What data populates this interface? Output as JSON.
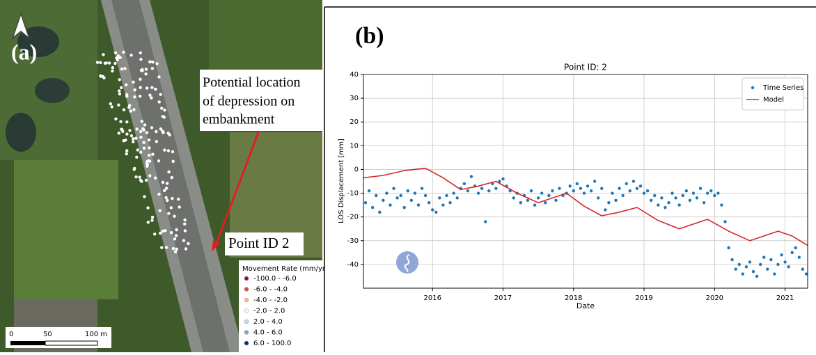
{
  "map": {
    "panel_label": "(a)",
    "annotation": [
      "Potential location",
      "of depression on",
      "embankment"
    ],
    "point_label": "Point ID 2",
    "legend": {
      "title": "Movement Rate (mm/yr)",
      "items": [
        {
          "label": "-100.0 - -6.0",
          "color": "#a50f15"
        },
        {
          "label": "-6.0 - -4.0",
          "color": "#e34a33"
        },
        {
          "label": "-4.0 - -2.0",
          "color": "#fdbb84"
        },
        {
          "label": "-2.0 - 2.0",
          "color": "#f7f7f7"
        },
        {
          "label": "2.0 - 4.0",
          "color": "#bdd7e7"
        },
        {
          "label": "4.0 - 6.0",
          "color": "#6baed6"
        },
        {
          "label": "6.0 - 100.0",
          "color": "#08306b"
        }
      ]
    },
    "scale": [
      "0",
      "50",
      "100 m"
    ]
  },
  "chart_data": {
    "type": "scatter",
    "panel_label": "(b)",
    "title": "Point ID: 2",
    "x_label": "Date",
    "y_label": "LOS Displacement [mm]",
    "xlim": [
      2015.02,
      2021.32
    ],
    "xticks": [
      2016,
      2017,
      2018,
      2019,
      2020,
      2021
    ],
    "ylim": [
      -50,
      40
    ],
    "yticks": [
      -40,
      -30,
      -20,
      -10,
      0,
      10,
      20,
      30,
      40
    ],
    "grid": true,
    "legend": "upper right",
    "series": [
      {
        "name": "Time Series",
        "color": "#1f77b4",
        "x": [
          2015.05,
          2015.1,
          2015.15,
          2015.2,
          2015.25,
          2015.3,
          2015.35,
          2015.4,
          2015.45,
          2015.5,
          2015.55,
          2015.6,
          2015.65,
          2015.7,
          2015.75,
          2015.8,
          2015.85,
          2015.9,
          2015.95,
          2016.0,
          2016.05,
          2016.1,
          2016.15,
          2016.2,
          2016.25,
          2016.3,
          2016.35,
          2016.4,
          2016.45,
          2016.5,
          2016.55,
          2016.6,
          2016.65,
          2016.7,
          2016.75,
          2016.8,
          2016.85,
          2016.9,
          2016.95,
          2017.0,
          2017.05,
          2017.1,
          2017.15,
          2017.2,
          2017.25,
          2017.3,
          2017.35,
          2017.4,
          2017.45,
          2017.5,
          2017.55,
          2017.6,
          2017.65,
          2017.7,
          2017.75,
          2017.8,
          2017.85,
          2017.9,
          2017.95,
          2018.0,
          2018.05,
          2018.1,
          2018.15,
          2018.2,
          2018.25,
          2018.3,
          2018.35,
          2018.4,
          2018.45,
          2018.5,
          2018.55,
          2018.6,
          2018.65,
          2018.7,
          2018.75,
          2018.8,
          2018.85,
          2018.9,
          2018.95,
          2019.0,
          2019.05,
          2019.1,
          2019.15,
          2019.2,
          2019.25,
          2019.3,
          2019.35,
          2019.4,
          2019.45,
          2019.5,
          2019.55,
          2019.6,
          2019.65,
          2019.7,
          2019.75,
          2019.8,
          2019.85,
          2019.9,
          2019.95,
          2020.0,
          2020.05,
          2020.1,
          2020.15,
          2020.2,
          2020.25,
          2020.3,
          2020.35,
          2020.4,
          2020.45,
          2020.5,
          2020.55,
          2020.6,
          2020.65,
          2020.7,
          2020.75,
          2020.8,
          2020.85,
          2020.9,
          2020.95,
          2021.0,
          2021.05,
          2021.1,
          2021.15,
          2021.2,
          2021.25,
          2021.3
        ],
        "values": [
          -14,
          -9,
          -16,
          -11,
          -18,
          -13,
          -10,
          -15,
          -8,
          -12,
          -11,
          -16,
          -9,
          -13,
          -10,
          -15,
          -8,
          -11,
          -14,
          -17,
          -18,
          -12,
          -15,
          -11,
          -14,
          -10,
          -12,
          -8,
          -6,
          -9,
          -3,
          -7,
          -10,
          -8,
          -22,
          -9,
          -6,
          -8,
          -5,
          -4,
          -7,
          -9,
          -12,
          -10,
          -14,
          -11,
          -13,
          -9,
          -15,
          -12,
          -10,
          -14,
          -11,
          -9,
          -13,
          -8,
          -11,
          -10,
          -7,
          -9,
          -6,
          -8,
          -10,
          -7,
          -9,
          -5,
          -12,
          -8,
          -17,
          -14,
          -10,
          -13,
          -8,
          -11,
          -6,
          -9,
          -5,
          -8,
          -7,
          -10,
          -9,
          -13,
          -11,
          -15,
          -12,
          -16,
          -14,
          -10,
          -12,
          -15,
          -11,
          -9,
          -13,
          -10,
          -12,
          -8,
          -14,
          -10,
          -9,
          -11,
          -10,
          -15,
          -22,
          -33,
          -38,
          -42,
          -40,
          -44,
          -41,
          -39,
          -43,
          -45,
          -40,
          -37,
          -42,
          -38,
          -44,
          -40,
          -36,
          -39,
          -41,
          -35,
          -33,
          -37,
          -42,
          -44
        ]
      },
      {
        "name": "Model",
        "color": "#d62728",
        "type": "line",
        "x": [
          2015.02,
          2015.3,
          2015.6,
          2015.9,
          2016.15,
          2016.4,
          2016.65,
          2016.9,
          2017.2,
          2017.5,
          2017.7,
          2017.9,
          2018.15,
          2018.4,
          2018.65,
          2018.9,
          2019.2,
          2019.5,
          2019.7,
          2019.9,
          2020.2,
          2020.5,
          2020.7,
          2020.9,
          2021.1,
          2021.32
        ],
        "values": [
          -3.5,
          -2.5,
          -0.5,
          0.5,
          -3.5,
          -8.5,
          -7,
          -5,
          -10,
          -14,
          -12,
          -10,
          -15.5,
          -19.5,
          -18,
          -16,
          -21.5,
          -25,
          -23,
          -21,
          -26,
          -30,
          -28,
          -26,
          -28,
          -32
        ]
      }
    ]
  }
}
